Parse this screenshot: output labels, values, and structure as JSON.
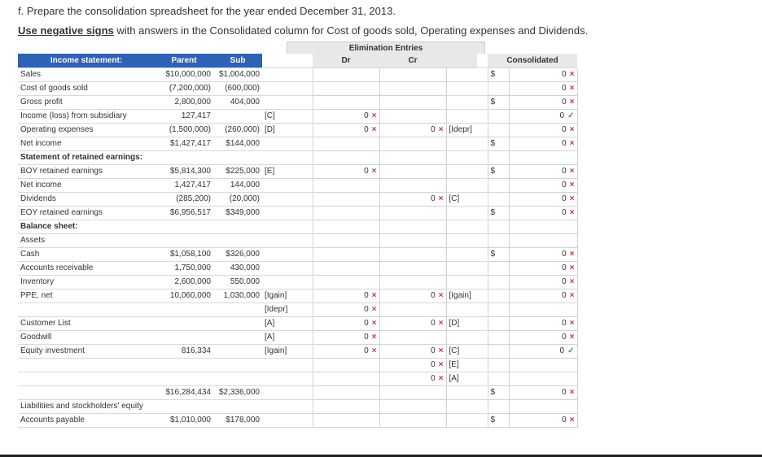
{
  "title": "f. Prepare the consolidation spreadsheet for the year ended December 31, 2013.",
  "subtitle_bold": "Use negative signs",
  "subtitle_rest": " with answers in the Consolidated column for Cost of goods sold, Operating expenses and Dividends.",
  "headers": {
    "label": "Income statement:",
    "parent": "Parent",
    "sub": "Sub",
    "elim": "Elimination Entries",
    "dr": "Dr",
    "cr": "Cr",
    "cons": "Consolidated"
  },
  "icons": {
    "wrong": "×",
    "right": "✓",
    "wrong_name": "cross-icon",
    "right_name": "check-icon"
  },
  "rows": [
    {
      "label": "Sales",
      "bold": false,
      "parent": "$10,000,000",
      "sub": "$1,004,000",
      "dr_ref": "",
      "dr_val": "",
      "dr_mark": "",
      "cr_val": "",
      "cr_mark": "",
      "cr_ref": "",
      "cons_dollar": "$",
      "cons_val": "0",
      "cons_mark": "wrong"
    },
    {
      "label": "Cost of goods sold",
      "bold": false,
      "parent": "(7,200,000)",
      "sub": "(600,000)",
      "dr_ref": "",
      "dr_val": "",
      "dr_mark": "",
      "cr_val": "",
      "cr_mark": "",
      "cr_ref": "",
      "cons_dollar": "",
      "cons_val": "0",
      "cons_mark": "wrong"
    },
    {
      "label": "Gross profit",
      "bold": false,
      "parent": "2,800,000",
      "sub": "404,000",
      "dr_ref": "",
      "dr_val": "",
      "dr_mark": "",
      "cr_val": "",
      "cr_mark": "",
      "cr_ref": "",
      "cons_dollar": "$",
      "cons_val": "0",
      "cons_mark": "wrong"
    },
    {
      "label": "Income (loss) from subsidiary",
      "bold": false,
      "parent": "127,417",
      "sub": "",
      "dr_ref": "[C]",
      "dr_val": "0",
      "dr_mark": "wrong",
      "cr_val": "",
      "cr_mark": "",
      "cr_ref": "",
      "cons_dollar": "",
      "cons_val": "0",
      "cons_mark": "right"
    },
    {
      "label": "Operating expenses",
      "bold": false,
      "parent": "(1,500,000)",
      "sub": "(260,000)",
      "dr_ref": "[D]",
      "dr_val": "0",
      "dr_mark": "wrong",
      "cr_val": "0",
      "cr_mark": "wrong",
      "cr_ref": "[Idepr]",
      "cons_dollar": "",
      "cons_val": "0",
      "cons_mark": "wrong"
    },
    {
      "label": "Net income",
      "bold": false,
      "parent": "$1,427,417",
      "sub": "$144,000",
      "dr_ref": "",
      "dr_val": "",
      "dr_mark": "",
      "cr_val": "",
      "cr_mark": "",
      "cr_ref": "",
      "cons_dollar": "$",
      "cons_val": "0",
      "cons_mark": "wrong"
    },
    {
      "label": "Statement of retained earnings:",
      "bold": true,
      "parent": "",
      "sub": "",
      "dr_ref": "",
      "dr_val": "",
      "dr_mark": "",
      "cr_val": "",
      "cr_mark": "",
      "cr_ref": "",
      "cons_dollar": "",
      "cons_val": "",
      "cons_mark": ""
    },
    {
      "label": "BOY retained earnings",
      "bold": false,
      "parent": "$5,814,300",
      "sub": "$225,000",
      "dr_ref": "[E]",
      "dr_val": "0",
      "dr_mark": "wrong",
      "cr_val": "",
      "cr_mark": "",
      "cr_ref": "",
      "cons_dollar": "$",
      "cons_val": "0",
      "cons_mark": "wrong"
    },
    {
      "label": "Net income",
      "bold": false,
      "parent": "1,427,417",
      "sub": "144,000",
      "dr_ref": "",
      "dr_val": "",
      "dr_mark": "",
      "cr_val": "",
      "cr_mark": "",
      "cr_ref": "",
      "cons_dollar": "",
      "cons_val": "0",
      "cons_mark": "wrong"
    },
    {
      "label": "Dividends",
      "bold": false,
      "parent": "(285,200)",
      "sub": "(20,000)",
      "dr_ref": "",
      "dr_val": "",
      "dr_mark": "",
      "cr_val": "0",
      "cr_mark": "wrong",
      "cr_ref": "[C]",
      "cons_dollar": "",
      "cons_val": "0",
      "cons_mark": "wrong"
    },
    {
      "label": "EOY retained earnings",
      "bold": false,
      "parent": "$6,956,517",
      "sub": "$349,000",
      "dr_ref": "",
      "dr_val": "",
      "dr_mark": "",
      "cr_val": "",
      "cr_mark": "",
      "cr_ref": "",
      "cons_dollar": "$",
      "cons_val": "0",
      "cons_mark": "wrong"
    },
    {
      "label": "Balance sheet:",
      "bold": true,
      "parent": "",
      "sub": "",
      "dr_ref": "",
      "dr_val": "",
      "dr_mark": "",
      "cr_val": "",
      "cr_mark": "",
      "cr_ref": "",
      "cons_dollar": "",
      "cons_val": "",
      "cons_mark": ""
    },
    {
      "label": "Assets",
      "bold": false,
      "parent": "",
      "sub": "",
      "dr_ref": "",
      "dr_val": "",
      "dr_mark": "",
      "cr_val": "",
      "cr_mark": "",
      "cr_ref": "",
      "cons_dollar": "",
      "cons_val": "",
      "cons_mark": ""
    },
    {
      "label": "Cash",
      "bold": false,
      "parent": "$1,058,100",
      "sub": "$326,000",
      "dr_ref": "",
      "dr_val": "",
      "dr_mark": "",
      "cr_val": "",
      "cr_mark": "",
      "cr_ref": "",
      "cons_dollar": "$",
      "cons_val": "0",
      "cons_mark": "wrong"
    },
    {
      "label": "Accounts receivable",
      "bold": false,
      "parent": "1,750,000",
      "sub": "430,000",
      "dr_ref": "",
      "dr_val": "",
      "dr_mark": "",
      "cr_val": "",
      "cr_mark": "",
      "cr_ref": "",
      "cons_dollar": "",
      "cons_val": "0",
      "cons_mark": "wrong"
    },
    {
      "label": "Inventory",
      "bold": false,
      "parent": "2,600,000",
      "sub": "550,000",
      "dr_ref": "",
      "dr_val": "",
      "dr_mark": "",
      "cr_val": "",
      "cr_mark": "",
      "cr_ref": "",
      "cons_dollar": "",
      "cons_val": "0",
      "cons_mark": "wrong"
    },
    {
      "label": "PPE, net",
      "bold": false,
      "parent": "10,060,000",
      "sub": "1,030,000",
      "dr_ref": "[Igain]",
      "dr_val": "0",
      "dr_mark": "wrong",
      "cr_val": "0",
      "cr_mark": "wrong",
      "cr_ref": "[Igain]",
      "cons_dollar": "",
      "cons_val": "0",
      "cons_mark": "wrong"
    },
    {
      "label": "",
      "bold": false,
      "parent": "",
      "sub": "",
      "dr_ref": "[Idepr]",
      "dr_val": "0",
      "dr_mark": "wrong",
      "cr_val": "",
      "cr_mark": "",
      "cr_ref": "",
      "cons_dollar": "",
      "cons_val": "",
      "cons_mark": ""
    },
    {
      "label": "Customer List",
      "bold": false,
      "parent": "",
      "sub": "",
      "dr_ref": "[A]",
      "dr_val": "0",
      "dr_mark": "wrong",
      "cr_val": "0",
      "cr_mark": "wrong",
      "cr_ref": "[D]",
      "cons_dollar": "",
      "cons_val": "0",
      "cons_mark": "wrong"
    },
    {
      "label": "Goodwill",
      "bold": false,
      "parent": "",
      "sub": "",
      "dr_ref": "[A]",
      "dr_val": "0",
      "dr_mark": "wrong",
      "cr_val": "",
      "cr_mark": "",
      "cr_ref": "",
      "cons_dollar": "",
      "cons_val": "0",
      "cons_mark": "wrong"
    },
    {
      "label": "Equity investment",
      "bold": false,
      "parent": "816,334",
      "sub": "",
      "dr_ref": "[Igain]",
      "dr_val": "0",
      "dr_mark": "wrong",
      "cr_val": "0",
      "cr_mark": "wrong",
      "cr_ref": "[C]",
      "cons_dollar": "",
      "cons_val": "0",
      "cons_mark": "right"
    },
    {
      "label": "",
      "bold": false,
      "parent": "",
      "sub": "",
      "dr_ref": "",
      "dr_val": "",
      "dr_mark": "",
      "cr_val": "0",
      "cr_mark": "wrong",
      "cr_ref": "[E]",
      "cons_dollar": "",
      "cons_val": "",
      "cons_mark": ""
    },
    {
      "label": "",
      "bold": false,
      "parent": "",
      "sub": "",
      "dr_ref": "",
      "dr_val": "",
      "dr_mark": "",
      "cr_val": "0",
      "cr_mark": "wrong",
      "cr_ref": "[A]",
      "cons_dollar": "",
      "cons_val": "",
      "cons_mark": ""
    },
    {
      "label": "",
      "bold": false,
      "parent": "$16,284,434",
      "sub": "$2,336,000",
      "dr_ref": "",
      "dr_val": "",
      "dr_mark": "",
      "cr_val": "",
      "cr_mark": "",
      "cr_ref": "",
      "cons_dollar": "$",
      "cons_val": "0",
      "cons_mark": "wrong"
    },
    {
      "label": "Liabilities and stockholders' equity",
      "bold": false,
      "parent": "",
      "sub": "",
      "dr_ref": "",
      "dr_val": "",
      "dr_mark": "",
      "cr_val": "",
      "cr_mark": "",
      "cr_ref": "",
      "cons_dollar": "",
      "cons_val": "",
      "cons_mark": ""
    },
    {
      "label": "Accounts payable",
      "bold": false,
      "parent": "$1,010,000",
      "sub": "$178,000",
      "dr_ref": "",
      "dr_val": "",
      "dr_mark": "",
      "cr_val": "",
      "cr_mark": "",
      "cr_ref": "",
      "cons_dollar": "$",
      "cons_val": "0",
      "cons_mark": "wrong"
    }
  ]
}
